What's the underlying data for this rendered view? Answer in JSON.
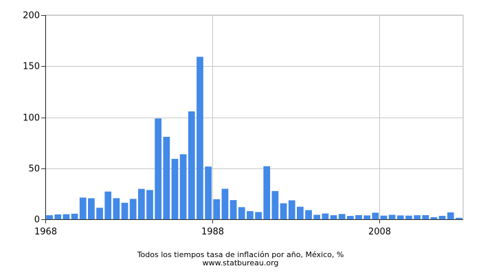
{
  "chart_data": {
    "type": "bar",
    "title": "Todos los tiempos tasa de inflación por año, México, %",
    "source": "www.statbureau.org",
    "xlabel": "",
    "ylabel": "",
    "xlim": [
      1968,
      2018
    ],
    "ylim": [
      0,
      200
    ],
    "x_ticks": [
      1968,
      1988,
      2008
    ],
    "y_ticks": [
      0,
      50,
      100,
      150,
      200
    ],
    "grid": true,
    "legend": "none",
    "bar_color": "#4289e8",
    "categories": [
      1969,
      1970,
      1971,
      1972,
      1973,
      1974,
      1975,
      1976,
      1977,
      1978,
      1979,
      1980,
      1981,
      1982,
      1983,
      1984,
      1985,
      1986,
      1987,
      1988,
      1989,
      1990,
      1991,
      1992,
      1993,
      1994,
      1995,
      1996,
      1997,
      1998,
      1999,
      2000,
      2001,
      2002,
      2003,
      2004,
      2005,
      2006,
      2007,
      2008,
      2009,
      2010,
      2011,
      2012,
      2013,
      2014,
      2015,
      2016,
      2017,
      2018
    ],
    "values": [
      4.0,
      4.8,
      5.0,
      5.5,
      21.3,
      20.6,
      11.3,
      27.2,
      20.7,
      16.2,
      20.0,
      29.8,
      28.7,
      98.8,
      80.8,
      59.2,
      63.7,
      105.7,
      159.2,
      51.7,
      19.7,
      29.9,
      18.8,
      11.9,
      8.0,
      7.1,
      52.0,
      27.7,
      15.7,
      18.6,
      12.3,
      9.0,
      4.4,
      5.7,
      4.0,
      5.2,
      3.3,
      4.1,
      3.8,
      6.5,
      3.6,
      4.4,
      3.8,
      3.6,
      4.0,
      4.1,
      2.1,
      3.4,
      6.8,
      1.5
    ]
  }
}
